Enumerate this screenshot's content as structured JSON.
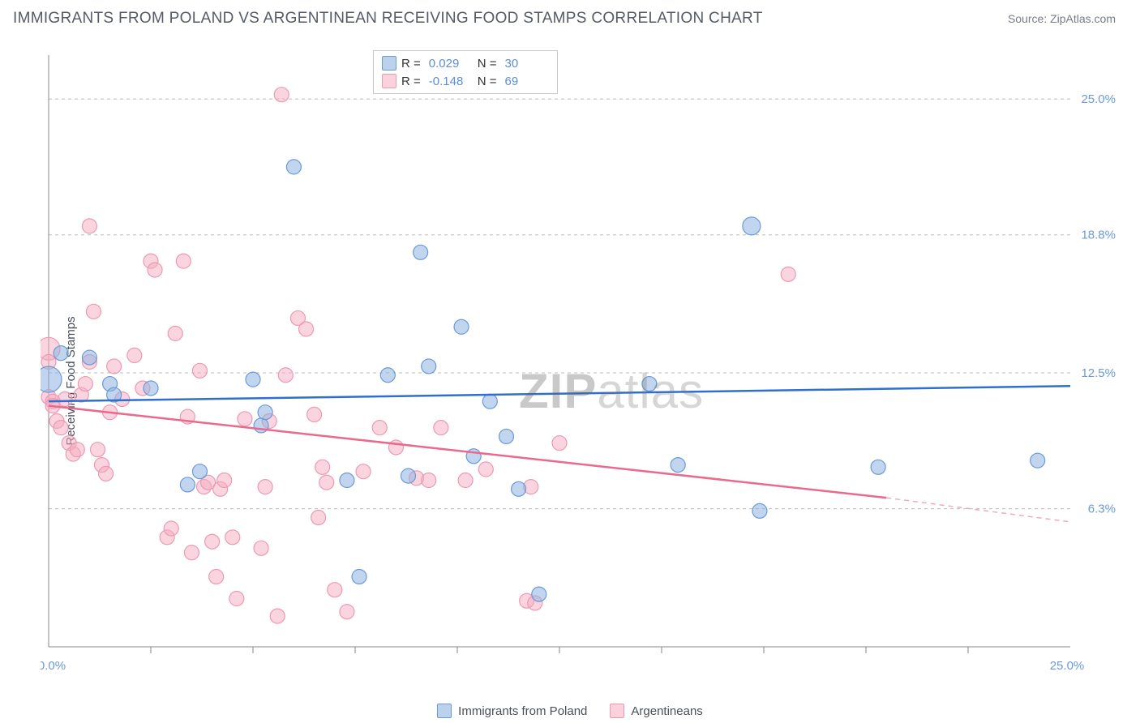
{
  "header": {
    "title": "IMMIGRANTS FROM POLAND VS ARGENTINEAN RECEIVING FOOD STAMPS CORRELATION CHART",
    "source": "Source: ZipAtlas.com"
  },
  "watermark": {
    "bold": "ZIP",
    "light": "atlas"
  },
  "chart": {
    "type": "scatter",
    "ylabel": "Receiving Food Stamps",
    "x_range": [
      0,
      25
    ],
    "y_range": [
      0,
      27
    ],
    "x_end_labels": {
      "min": "0.0%",
      "max": "25.0%"
    },
    "y_ticks": [
      {
        "v": 6.3,
        "label": "6.3%"
      },
      {
        "v": 12.5,
        "label": "12.5%"
      },
      {
        "v": 18.8,
        "label": "18.8%"
      },
      {
        "v": 25.0,
        "label": "25.0%"
      }
    ],
    "x_ticks_minor": [
      2.5,
      5,
      7.5,
      10,
      12.5,
      15,
      17.5,
      20,
      22.5
    ],
    "colors": {
      "blue_fill": "rgba(142,178,224,0.55)",
      "blue_stroke": "#6a9bd8",
      "blue_line": "#2f6fd0",
      "pink_fill": "rgba(246,172,192,0.5)",
      "pink_stroke": "#ec9ab3",
      "pink_line": "#e96a8d",
      "pink_dash": "#f2a9be",
      "grid": "#bcbcbc",
      "axis": "#888888",
      "tick_label": "#6a9bd8",
      "text": "#4a4f58"
    },
    "marker_radius": 9,
    "series": [
      {
        "key": "poland",
        "label": "Immigrants from Poland",
        "color": "blue",
        "R": "0.029",
        "N": "30",
        "trend": {
          "x1": 0,
          "y1": 11.2,
          "x2": 25,
          "y2": 11.9
        },
        "points": [
          {
            "x": 0.0,
            "y": 12.2,
            "r": 16
          },
          {
            "x": 0.3,
            "y": 13.4
          },
          {
            "x": 1.0,
            "y": 13.2
          },
          {
            "x": 1.5,
            "y": 12.0
          },
          {
            "x": 1.6,
            "y": 11.5
          },
          {
            "x": 2.5,
            "y": 11.8
          },
          {
            "x": 3.4,
            "y": 7.4
          },
          {
            "x": 3.7,
            "y": 8.0
          },
          {
            "x": 5.0,
            "y": 12.2
          },
          {
            "x": 5.2,
            "y": 10.1
          },
          {
            "x": 5.3,
            "y": 10.7
          },
          {
            "x": 6.0,
            "y": 21.9
          },
          {
            "x": 7.3,
            "y": 7.6
          },
          {
            "x": 7.6,
            "y": 3.2
          },
          {
            "x": 8.3,
            "y": 12.4
          },
          {
            "x": 8.8,
            "y": 7.8
          },
          {
            "x": 9.1,
            "y": 18.0
          },
          {
            "x": 9.3,
            "y": 12.8
          },
          {
            "x": 10.1,
            "y": 14.6
          },
          {
            "x": 10.4,
            "y": 8.7
          },
          {
            "x": 10.8,
            "y": 11.2
          },
          {
            "x": 11.2,
            "y": 9.6
          },
          {
            "x": 11.5,
            "y": 7.2
          },
          {
            "x": 14.7,
            "y": 12.0
          },
          {
            "x": 15.4,
            "y": 8.3
          },
          {
            "x": 17.2,
            "y": 19.2,
            "r": 11
          },
          {
            "x": 17.4,
            "y": 6.2
          },
          {
            "x": 20.3,
            "y": 8.2
          },
          {
            "x": 24.2,
            "y": 8.5
          },
          {
            "x": 12.0,
            "y": 2.4
          }
        ]
      },
      {
        "key": "argentineans",
        "label": "Argentineans",
        "color": "pink",
        "R": "-0.148",
        "N": "69",
        "trend": {
          "x1": 0,
          "y1": 11.0,
          "x2": 20.5,
          "y2": 6.8,
          "dash_to_x": 25,
          "dash_to_y": 5.7
        },
        "points": [
          {
            "x": 0.0,
            "y": 13.6,
            "r": 14
          },
          {
            "x": 0.0,
            "y": 13.0
          },
          {
            "x": 0.0,
            "y": 11.4
          },
          {
            "x": 0.1,
            "y": 11.2
          },
          {
            "x": 0.1,
            "y": 11.0
          },
          {
            "x": 0.2,
            "y": 10.3
          },
          {
            "x": 0.3,
            "y": 10.0
          },
          {
            "x": 0.4,
            "y": 11.3
          },
          {
            "x": 0.5,
            "y": 9.3
          },
          {
            "x": 0.6,
            "y": 8.8
          },
          {
            "x": 0.7,
            "y": 9.0
          },
          {
            "x": 0.8,
            "y": 11.5
          },
          {
            "x": 0.9,
            "y": 12.0
          },
          {
            "x": 1.0,
            "y": 13.0
          },
          {
            "x": 1.0,
            "y": 19.2
          },
          {
            "x": 1.1,
            "y": 15.3
          },
          {
            "x": 1.2,
            "y": 9.0
          },
          {
            "x": 1.3,
            "y": 8.3
          },
          {
            "x": 1.4,
            "y": 7.9
          },
          {
            "x": 1.5,
            "y": 10.7
          },
          {
            "x": 1.6,
            "y": 12.8
          },
          {
            "x": 1.8,
            "y": 11.3
          },
          {
            "x": 2.1,
            "y": 13.3
          },
          {
            "x": 2.3,
            "y": 11.8
          },
          {
            "x": 2.5,
            "y": 17.6
          },
          {
            "x": 2.6,
            "y": 17.2
          },
          {
            "x": 2.9,
            "y": 5.0
          },
          {
            "x": 3.0,
            "y": 5.4
          },
          {
            "x": 3.1,
            "y": 14.3
          },
          {
            "x": 3.3,
            "y": 17.6
          },
          {
            "x": 3.4,
            "y": 10.5
          },
          {
            "x": 3.5,
            "y": 4.3
          },
          {
            "x": 3.7,
            "y": 12.6
          },
          {
            "x": 3.8,
            "y": 7.3
          },
          {
            "x": 3.9,
            "y": 7.5
          },
          {
            "x": 4.0,
            "y": 4.8
          },
          {
            "x": 4.1,
            "y": 3.2
          },
          {
            "x": 4.2,
            "y": 7.2
          },
          {
            "x": 4.3,
            "y": 7.6
          },
          {
            "x": 4.5,
            "y": 5.0
          },
          {
            "x": 4.6,
            "y": 2.2
          },
          {
            "x": 4.8,
            "y": 10.4
          },
          {
            "x": 5.2,
            "y": 4.5
          },
          {
            "x": 5.3,
            "y": 7.3
          },
          {
            "x": 5.4,
            "y": 10.3
          },
          {
            "x": 5.6,
            "y": 1.4
          },
          {
            "x": 5.7,
            "y": 25.2
          },
          {
            "x": 5.8,
            "y": 12.4
          },
          {
            "x": 6.1,
            "y": 15.0
          },
          {
            "x": 6.3,
            "y": 14.5
          },
          {
            "x": 6.5,
            "y": 10.6
          },
          {
            "x": 6.6,
            "y": 5.9
          },
          {
            "x": 6.7,
            "y": 8.2
          },
          {
            "x": 6.8,
            "y": 7.5
          },
          {
            "x": 7.0,
            "y": 2.6
          },
          {
            "x": 7.3,
            "y": 1.6
          },
          {
            "x": 7.7,
            "y": 8.0
          },
          {
            "x": 8.1,
            "y": 10.0
          },
          {
            "x": 8.5,
            "y": 9.1
          },
          {
            "x": 9.0,
            "y": 7.7
          },
          {
            "x": 9.3,
            "y": 7.6
          },
          {
            "x": 9.6,
            "y": 10.0
          },
          {
            "x": 10.2,
            "y": 7.6
          },
          {
            "x": 10.7,
            "y": 8.1
          },
          {
            "x": 11.7,
            "y": 2.1
          },
          {
            "x": 11.9,
            "y": 2.0
          },
          {
            "x": 11.8,
            "y": 7.3
          },
          {
            "x": 18.1,
            "y": 17.0
          },
          {
            "x": 12.5,
            "y": 9.3
          }
        ]
      }
    ],
    "legend_bottom": [
      {
        "swatch": "blue",
        "label": "Immigrants from Poland"
      },
      {
        "swatch": "pink",
        "label": "Argentineans"
      }
    ]
  }
}
